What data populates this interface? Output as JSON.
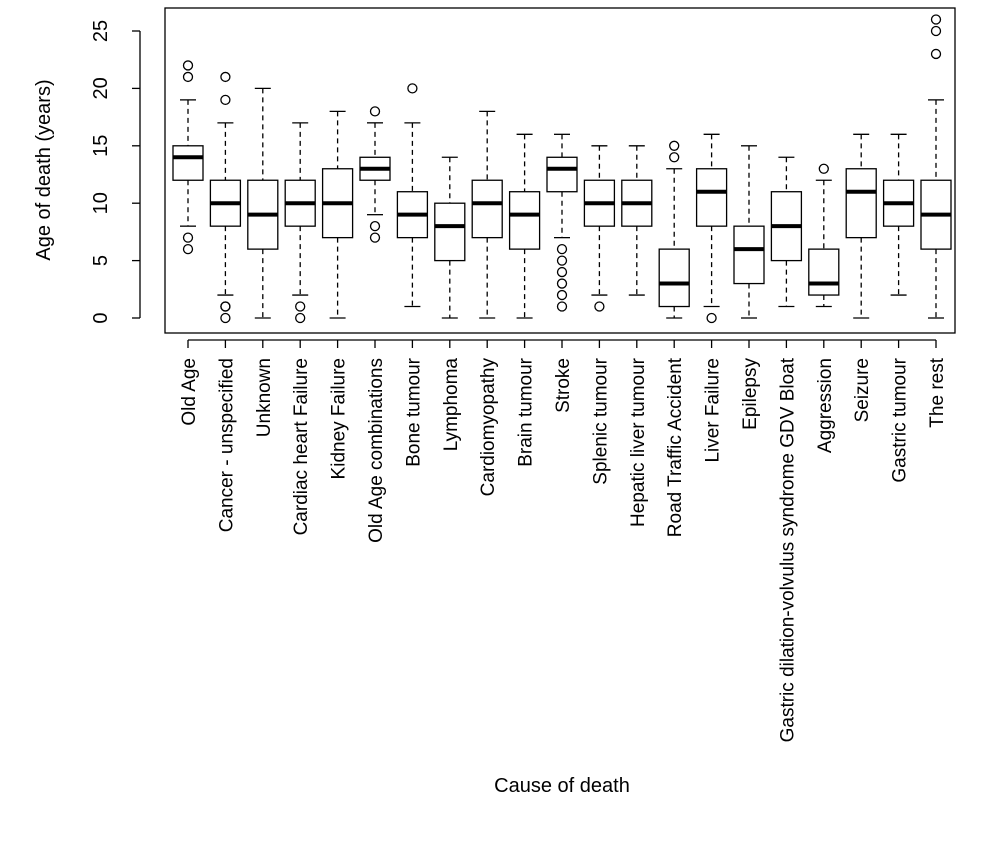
{
  "chart_data": {
    "type": "boxplot",
    "xlabel": "Cause of death",
    "ylabel": "Age of death (years)",
    "ylim": [
      0,
      26
    ],
    "yticks": [
      0,
      5,
      10,
      15,
      20,
      25
    ],
    "grid": false,
    "categories": [
      "Old Age",
      "Cancer - unspecified",
      "Unknown",
      "Cardiac heart Failure",
      "Kidney Failure",
      "Old Age combinations",
      "Bone tumour",
      "Lymphoma",
      "Cardiomyopathy",
      "Brain tumour",
      "Stroke",
      "Splenic tumour",
      "Hepatic liver tumour",
      "Road Traffic Accident",
      "Liver Failure",
      "Epilepsy",
      "Gastric dilation-volvulus syndrome GDV Bloat",
      "Aggression",
      "Seizure",
      "Gastric tumour",
      "The rest"
    ],
    "boxes": [
      {
        "low": 8,
        "q1": 12,
        "median": 14,
        "q3": 15,
        "high": 19,
        "outliers": [
          6,
          7,
          21,
          22
        ]
      },
      {
        "low": 2,
        "q1": 8,
        "median": 10,
        "q3": 12,
        "high": 17,
        "outliers": [
          0,
          1,
          1,
          19,
          21
        ]
      },
      {
        "low": 0,
        "q1": 6,
        "median": 9,
        "q3": 12,
        "high": 20,
        "outliers": []
      },
      {
        "low": 2,
        "q1": 8,
        "median": 10,
        "q3": 12,
        "high": 17,
        "outliers": [
          0,
          1
        ]
      },
      {
        "low": 0,
        "q1": 7,
        "median": 10,
        "q3": 13,
        "high": 18,
        "outliers": []
      },
      {
        "low": 9,
        "q1": 12,
        "median": 13,
        "q3": 14,
        "high": 17,
        "outliers": [
          7,
          8,
          18
        ]
      },
      {
        "low": 1,
        "q1": 7,
        "median": 9,
        "q3": 11,
        "high": 17,
        "outliers": [
          20
        ]
      },
      {
        "low": 0,
        "q1": 5,
        "median": 8,
        "q3": 10,
        "high": 14,
        "outliers": []
      },
      {
        "low": 0,
        "q1": 7,
        "median": 10,
        "q3": 12,
        "high": 18,
        "outliers": []
      },
      {
        "low": 0,
        "q1": 6,
        "median": 9,
        "q3": 11,
        "high": 16,
        "outliers": []
      },
      {
        "low": 7,
        "q1": 11,
        "median": 13,
        "q3": 14,
        "high": 16,
        "outliers": [
          1,
          2,
          3,
          4,
          5,
          6
        ]
      },
      {
        "low": 2,
        "q1": 8,
        "median": 10,
        "q3": 12,
        "high": 15,
        "outliers": [
          1
        ]
      },
      {
        "low": 2,
        "q1": 8,
        "median": 10,
        "q3": 12,
        "high": 15,
        "outliers": []
      },
      {
        "low": 0,
        "q1": 1,
        "median": 3,
        "q3": 6,
        "high": 13,
        "outliers": [
          14,
          15
        ]
      },
      {
        "low": 1,
        "q1": 8,
        "median": 11,
        "q3": 13,
        "high": 16,
        "outliers": [
          0
        ]
      },
      {
        "low": 0,
        "q1": 3,
        "median": 6,
        "q3": 8,
        "high": 15,
        "outliers": []
      },
      {
        "low": 1,
        "q1": 5,
        "median": 8,
        "q3": 11,
        "high": 14,
        "outliers": []
      },
      {
        "low": 1,
        "q1": 2,
        "median": 3,
        "q3": 6,
        "high": 12,
        "outliers": [
          13
        ]
      },
      {
        "low": 0,
        "q1": 7,
        "median": 11,
        "q3": 13,
        "high": 16,
        "outliers": []
      },
      {
        "low": 2,
        "q1": 8,
        "median": 10,
        "q3": 12,
        "high": 16,
        "outliers": []
      },
      {
        "low": 0,
        "q1": 6,
        "median": 9,
        "q3": 12,
        "high": 19,
        "outliers": [
          23,
          25,
          26
        ]
      }
    ]
  }
}
